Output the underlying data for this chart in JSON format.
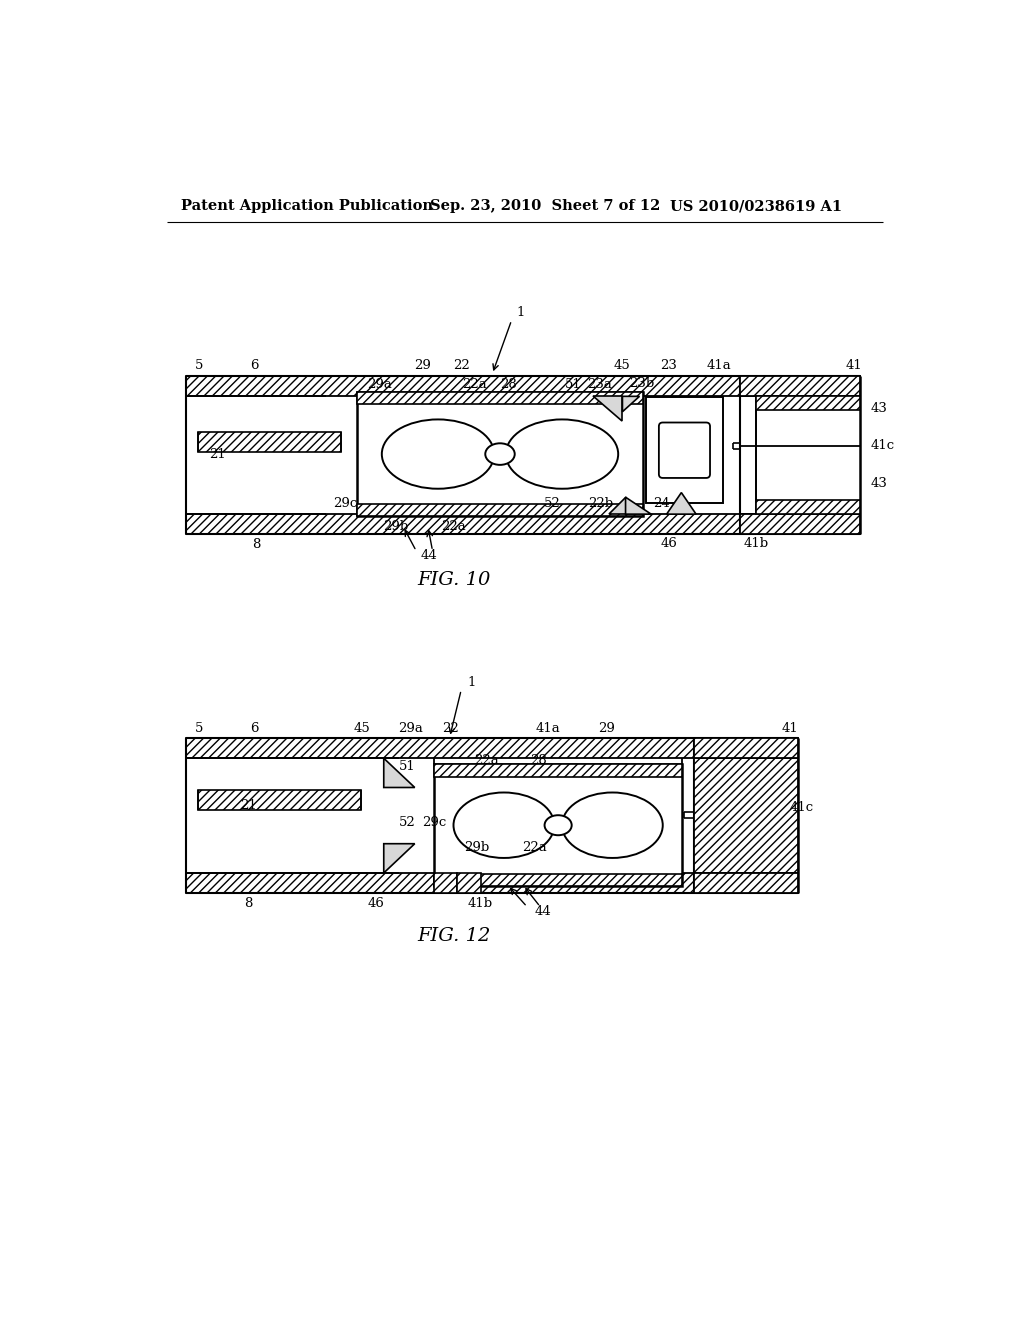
{
  "bg_color": "#ffffff",
  "header_left": "Patent Application Publication",
  "header_mid": "Sep. 23, 2010  Sheet 7 of 12",
  "header_right": "US 2010/0238619 A1",
  "fig10_label": "FIG. 10",
  "fig12_label": "FIG. 12"
}
